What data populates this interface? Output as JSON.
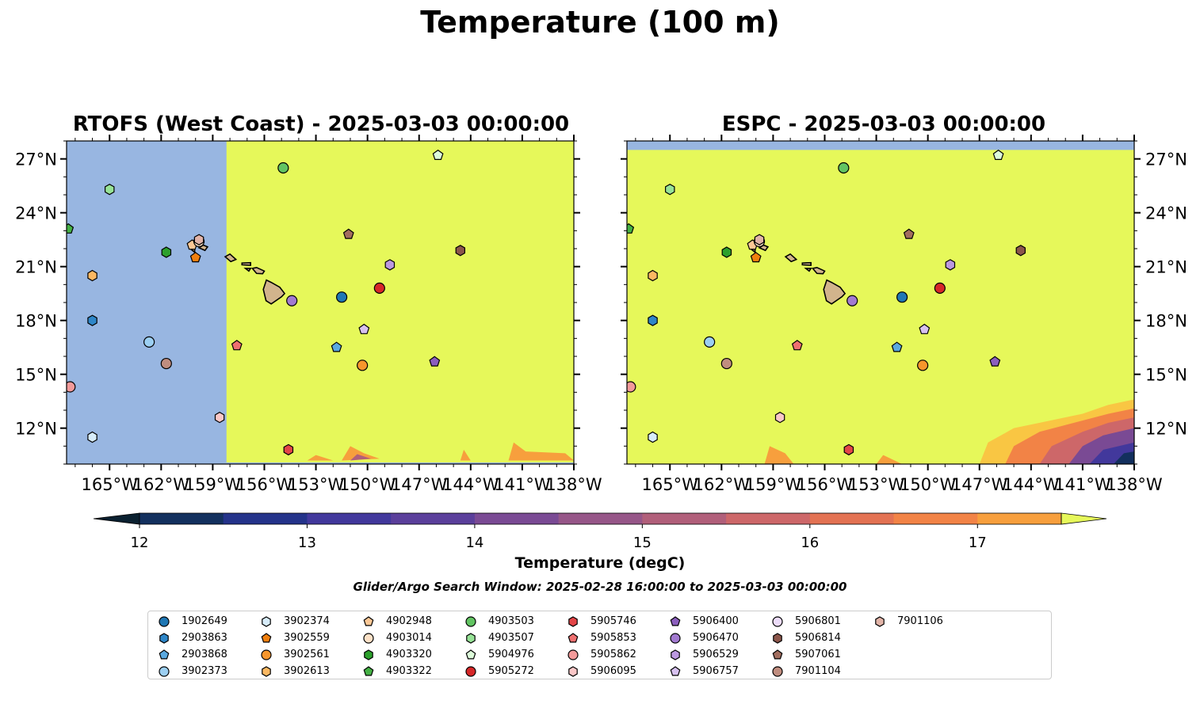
{
  "suptitle": "Temperature (100 m)",
  "panels": {
    "left_title": "RTOFS (West Coast) - 2025-03-03 00:00:00",
    "right_title": "ESPC - 2025-03-03 00:00:00"
  },
  "colorbar": {
    "label": "Temperature (degC)",
    "ticks": [
      "12",
      "13",
      "14",
      "15",
      "16",
      "17"
    ]
  },
  "search_window": "Glider/Argo Search Window: 2025-02-28 16:00:00 to 2025-03-03 00:00:00",
  "colors": {
    "ocean_fill": "#e6f85a",
    "nodata": "#98b6e1",
    "land": "#d2b48c",
    "colormap": [
      "#0a2030",
      "#13305e",
      "#24338a",
      "#42389c",
      "#5b3f9b",
      "#7a4a94",
      "#965688",
      "#b15f7a",
      "#cd6769",
      "#e37253",
      "#f28346",
      "#f79f3d",
      "#f9c643",
      "#e6f85a"
    ]
  },
  "chart_data": [
    {
      "type": "scatter",
      "title": "RTOFS (West Coast) - 2025-03-03 00:00:00",
      "xlim": [
        -167.5,
        -138
      ],
      "ylim": [
        10,
        28
      ],
      "x_ticks": [
        "165°W",
        "162°W",
        "159°W",
        "156°W",
        "153°W",
        "150°W",
        "147°W",
        "144°W",
        "141°W",
        "138°W"
      ],
      "y_ticks": [
        "12°N",
        "15°N",
        "18°N",
        "21°N",
        "24°N",
        "27°N"
      ],
      "y_tick_side": "left",
      "nodata_region": "west of 158.2°W",
      "field_value": "above 17.5 degC over most of the domain; cooler patches along the southern edge"
    },
    {
      "type": "scatter",
      "title": "ESPC - 2025-03-03 00:00:00",
      "xlim": [
        -167.5,
        -138
      ],
      "ylim": [
        10,
        28
      ],
      "x_ticks": [
        "165°W",
        "162°W",
        "159°W",
        "156°W",
        "153°W",
        "150°W",
        "147°W",
        "144°W",
        "141°W",
        "138°W"
      ],
      "y_ticks": [
        "12°N",
        "15°N",
        "18°N",
        "21°N",
        "24°N",
        "27°N"
      ],
      "y_tick_side": "right",
      "nodata_region": "north of 27.5°N",
      "field_value": "above 17.5 degC over most of the domain; cold water (12-15 degC) in the south-east corner"
    }
  ],
  "floats": [
    {
      "id": "1902649",
      "marker": "circle",
      "color": "#1f77b4",
      "lon": -151.5,
      "lat": 19.3
    },
    {
      "id": "2903863",
      "marker": "hexagon",
      "color": "#2e86c8",
      "lon": -166.0,
      "lat": 18.0
    },
    {
      "id": "2903868",
      "marker": "pentagon",
      "color": "#5aa9e0",
      "lon": -151.8,
      "lat": 16.5
    },
    {
      "id": "3902373",
      "marker": "circle",
      "color": "#9ccff2",
      "lon": -162.7,
      "lat": 16.8
    },
    {
      "id": "3902374",
      "marker": "hexagon",
      "color": "#d7ecfa",
      "lon": -166.0,
      "lat": 11.5
    },
    {
      "id": "3902559",
      "marker": "pentagon",
      "color": "#f07f0e",
      "lon": -160.0,
      "lat": 21.5
    },
    {
      "id": "3902561",
      "marker": "circle",
      "color": "#f7962c",
      "lon": -150.3,
      "lat": 15.5
    },
    {
      "id": "3902613",
      "marker": "hexagon",
      "color": "#fbb862",
      "lon": -166.0,
      "lat": 20.5
    },
    {
      "id": "4902948",
      "marker": "pentagon",
      "color": "#fcc896",
      "lon": -160.2,
      "lat": 22.2
    },
    {
      "id": "4903014",
      "marker": "circle",
      "color": "#fde1c7",
      "lon": -159.8,
      "lat": 22.4
    },
    {
      "id": "4903320",
      "marker": "hexagon",
      "color": "#2ca02c",
      "lon": -161.7,
      "lat": 21.8
    },
    {
      "id": "4903322",
      "marker": "pentagon",
      "color": "#44b044",
      "lon": -167.4,
      "lat": 23.1
    },
    {
      "id": "4903503",
      "marker": "circle",
      "color": "#62c462",
      "lon": -154.9,
      "lat": 26.5
    },
    {
      "id": "4903507",
      "marker": "hexagon",
      "color": "#97e397",
      "lon": -165.0,
      "lat": 25.3
    },
    {
      "id": "5904976",
      "marker": "pentagon",
      "color": "#ddfbda",
      "lon": -145.9,
      "lat": 27.2
    },
    {
      "id": "5905272",
      "marker": "circle",
      "color": "#d62728",
      "lon": -149.3,
      "lat": 19.8
    },
    {
      "id": "5905746",
      "marker": "hexagon",
      "color": "#e34547",
      "lon": -154.6,
      "lat": 10.8
    },
    {
      "id": "5905853",
      "marker": "pentagon",
      "color": "#ef7070",
      "lon": -157.6,
      "lat": 16.6
    },
    {
      "id": "5905862",
      "marker": "circle",
      "color": "#f29a9a",
      "lon": -167.3,
      "lat": 14.3
    },
    {
      "id": "5906095",
      "marker": "hexagon",
      "color": "#fac7c7",
      "lon": -158.6,
      "lat": 12.6
    },
    {
      "id": "5906400",
      "marker": "pentagon",
      "color": "#8b5ebd",
      "lon": -146.1,
      "lat": 15.7
    },
    {
      "id": "5906470",
      "marker": "circle",
      "color": "#a27ad0",
      "lon": -154.4,
      "lat": 19.1
    },
    {
      "id": "5906529",
      "marker": "hexagon",
      "color": "#bc99e0",
      "lon": -148.7,
      "lat": 21.1
    },
    {
      "id": "5906757",
      "marker": "pentagon",
      "color": "#d7c1f0",
      "lon": -150.2,
      "lat": 17.5
    },
    {
      "id": "5906801",
      "marker": "circle",
      "color": "#ecdcfa",
      "lon": 0,
      "lat": 0,
      "plotted": false
    },
    {
      "id": "5906814",
      "marker": "hexagon",
      "color": "#8c564b",
      "lon": -144.6,
      "lat": 21.9
    },
    {
      "id": "5907061",
      "marker": "pentagon",
      "color": "#a26e5f",
      "lon": -151.1,
      "lat": 22.8
    },
    {
      "id": "7901104",
      "marker": "circle",
      "color": "#c08d7f",
      "lon": -161.7,
      "lat": 15.6
    },
    {
      "id": "7901106",
      "marker": "hexagon",
      "color": "#e2b4a8",
      "lon": -159.8,
      "lat": 22.5
    }
  ]
}
